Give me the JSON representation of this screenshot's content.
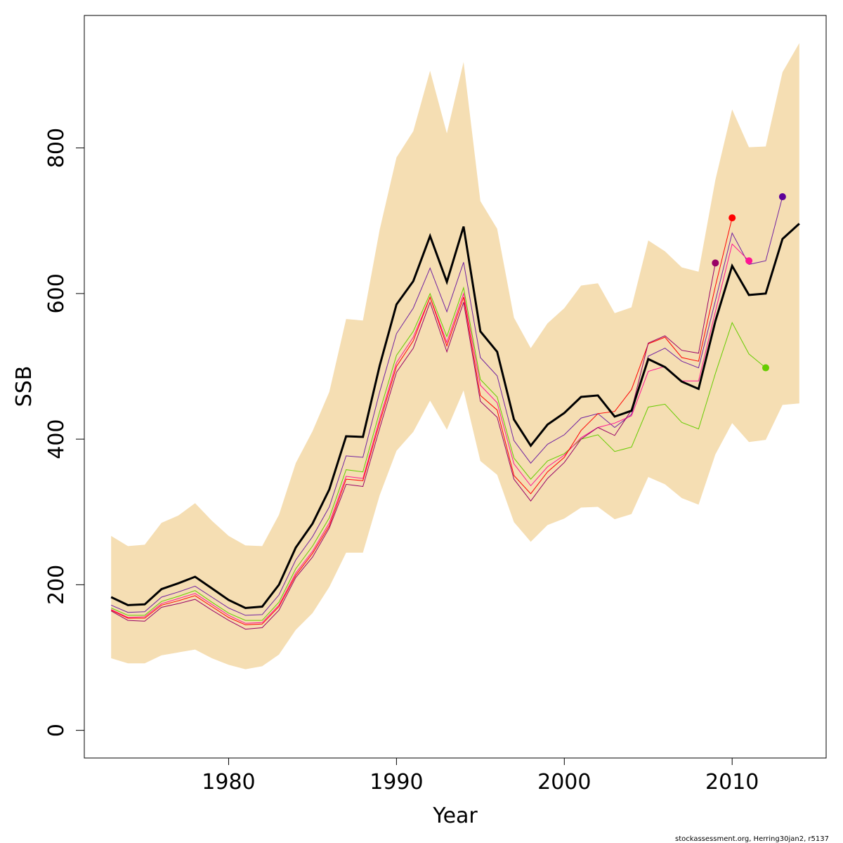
{
  "chart_data": {
    "type": "line",
    "title": "",
    "xlabel": "Year",
    "ylabel": "SSB",
    "xlim": [
      1971.4,
      2015.6
    ],
    "ylim": [
      -38,
      982
    ],
    "xticks": [
      1980,
      1990,
      2000,
      2010
    ],
    "yticks": [
      0,
      200,
      400,
      600,
      800
    ],
    "grid": false,
    "legend": "none",
    "colors": {
      "band": "#F5DEB3",
      "main": "#000000"
    },
    "band": {
      "x_start": 1973,
      "upper": [
        267,
        253,
        255,
        285,
        295,
        312,
        288,
        267,
        254,
        253,
        296,
        367,
        411,
        465,
        565,
        563,
        688,
        787,
        823,
        906,
        820,
        918,
        727,
        689,
        567,
        525,
        559,
        580,
        611,
        614,
        573,
        581,
        673,
        658,
        636,
        630,
        756,
        853,
        801,
        802,
        904,
        944
      ],
      "lower": [
        99,
        92,
        92,
        103,
        107,
        111,
        99,
        90,
        84,
        88,
        104,
        138,
        161,
        197,
        244,
        244,
        323,
        384,
        410,
        453,
        413,
        467,
        370,
        351,
        286,
        259,
        282,
        291,
        306,
        307,
        290,
        297,
        348,
        338,
        319,
        310,
        379,
        422,
        396,
        399,
        447,
        449
      ]
    },
    "main_series": {
      "x_start": 1973,
      "values": [
        183,
        172,
        173,
        194,
        202,
        211,
        195,
        179,
        168,
        170,
        200,
        251,
        284,
        331,
        404,
        403,
        501,
        585,
        617,
        679,
        616,
        692,
        548,
        520,
        427,
        391,
        420,
        436,
        458,
        460,
        431,
        439,
        510,
        499,
        479,
        469,
        562,
        638,
        598,
        600,
        675,
        696
      ]
    },
    "retro_series": [
      {
        "x_start": 1973,
        "color": "#7020A0",
        "dot_color": "#5E0099",
        "values": [
          172,
          162,
          163,
          183,
          190,
          198,
          183,
          168,
          158,
          159,
          186,
          234,
          266,
          307,
          377,
          375,
          465,
          545,
          580,
          635,
          575,
          643,
          512,
          487,
          398,
          367,
          393,
          406,
          429,
          435,
          416,
          434,
          514,
          525,
          507,
          498,
          590,
          683,
          640,
          645,
          733
        ]
      },
      {
        "x_start": 1973,
        "color": "#66CC00",
        "dot_color": "#66CC00",
        "values": [
          168,
          158,
          158,
          177,
          184,
          192,
          176,
          161,
          151,
          151,
          176,
          222,
          253,
          292,
          358,
          355,
          438,
          515,
          548,
          600,
          541,
          608,
          482,
          458,
          374,
          345,
          370,
          380,
          400,
          406,
          383,
          389,
          444,
          448,
          423,
          414,
          490,
          560,
          517,
          498
        ]
      },
      {
        "x_start": 1973,
        "color": "#FF1493",
        "dot_color": "#FF1493",
        "values": [
          166,
          155,
          156,
          174,
          181,
          188,
          173,
          158,
          147,
          148,
          172,
          216,
          246,
          285,
          349,
          346,
          428,
          505,
          540,
          595,
          533,
          600,
          474,
          450,
          366,
          336,
          362,
          378,
          402,
          416,
          422,
          432,
          493,
          500,
          480,
          480,
          575,
          668,
          645
        ]
      },
      {
        "x_start": 1973,
        "color": "#FF0000",
        "dot_color": "#FF0000",
        "values": [
          165,
          154,
          154,
          172,
          178,
          185,
          170,
          155,
          145,
          146,
          170,
          213,
          243,
          281,
          345,
          343,
          423,
          500,
          535,
          595,
          528,
          595,
          460,
          440,
          350,
          325,
          355,
          375,
          412,
          435,
          438,
          468,
          531,
          540,
          512,
          507,
          610,
          704
        ]
      },
      {
        "x_start": 1973,
        "color": "#990066",
        "dot_color": "#990066",
        "values": [
          164,
          151,
          150,
          169,
          174,
          180,
          165,
          151,
          139,
          141,
          165,
          210,
          238,
          278,
          338,
          335,
          415,
          492,
          525,
          588,
          520,
          588,
          452,
          430,
          345,
          315,
          346,
          368,
          400,
          416,
          405,
          440,
          532,
          542,
          522,
          518,
          642
        ]
      }
    ],
    "footer": "stockassessment.org, Herring30jan2, r5137"
  }
}
